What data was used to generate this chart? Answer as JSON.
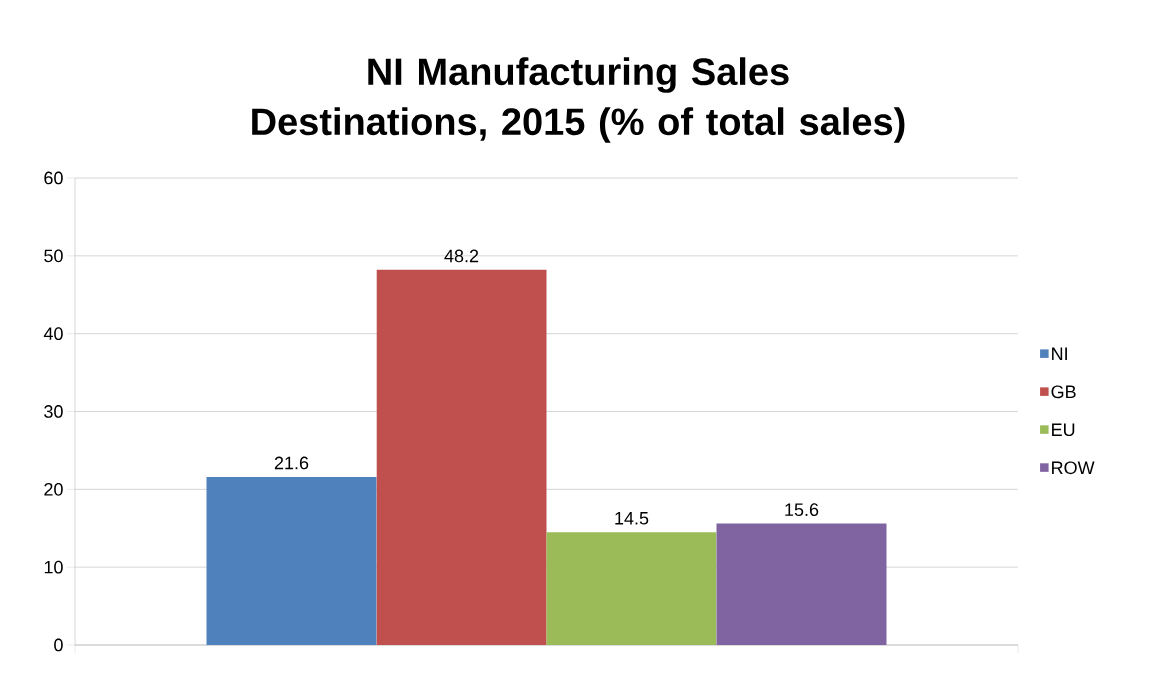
{
  "chart_data": {
    "type": "bar",
    "title": "NI Manufacturing Sales Destinations, 2015 (% of total sales)",
    "categories": [
      null
    ],
    "series": [
      {
        "name": "NI",
        "color": "#4f81bd",
        "values": [
          21.6
        ]
      },
      {
        "name": "GB",
        "color": "#c0504d",
        "values": [
          48.2
        ]
      },
      {
        "name": "EU",
        "color": "#9bbb59",
        "values": [
          14.5
        ]
      },
      {
        "name": "ROW",
        "color": "#8064a2",
        "values": [
          15.6
        ]
      }
    ],
    "ylim": [
      0,
      60
    ],
    "yticks": [
      0,
      10,
      20,
      30,
      40,
      50,
      60
    ],
    "grid": "y",
    "legend": "right",
    "data_labels": true
  }
}
